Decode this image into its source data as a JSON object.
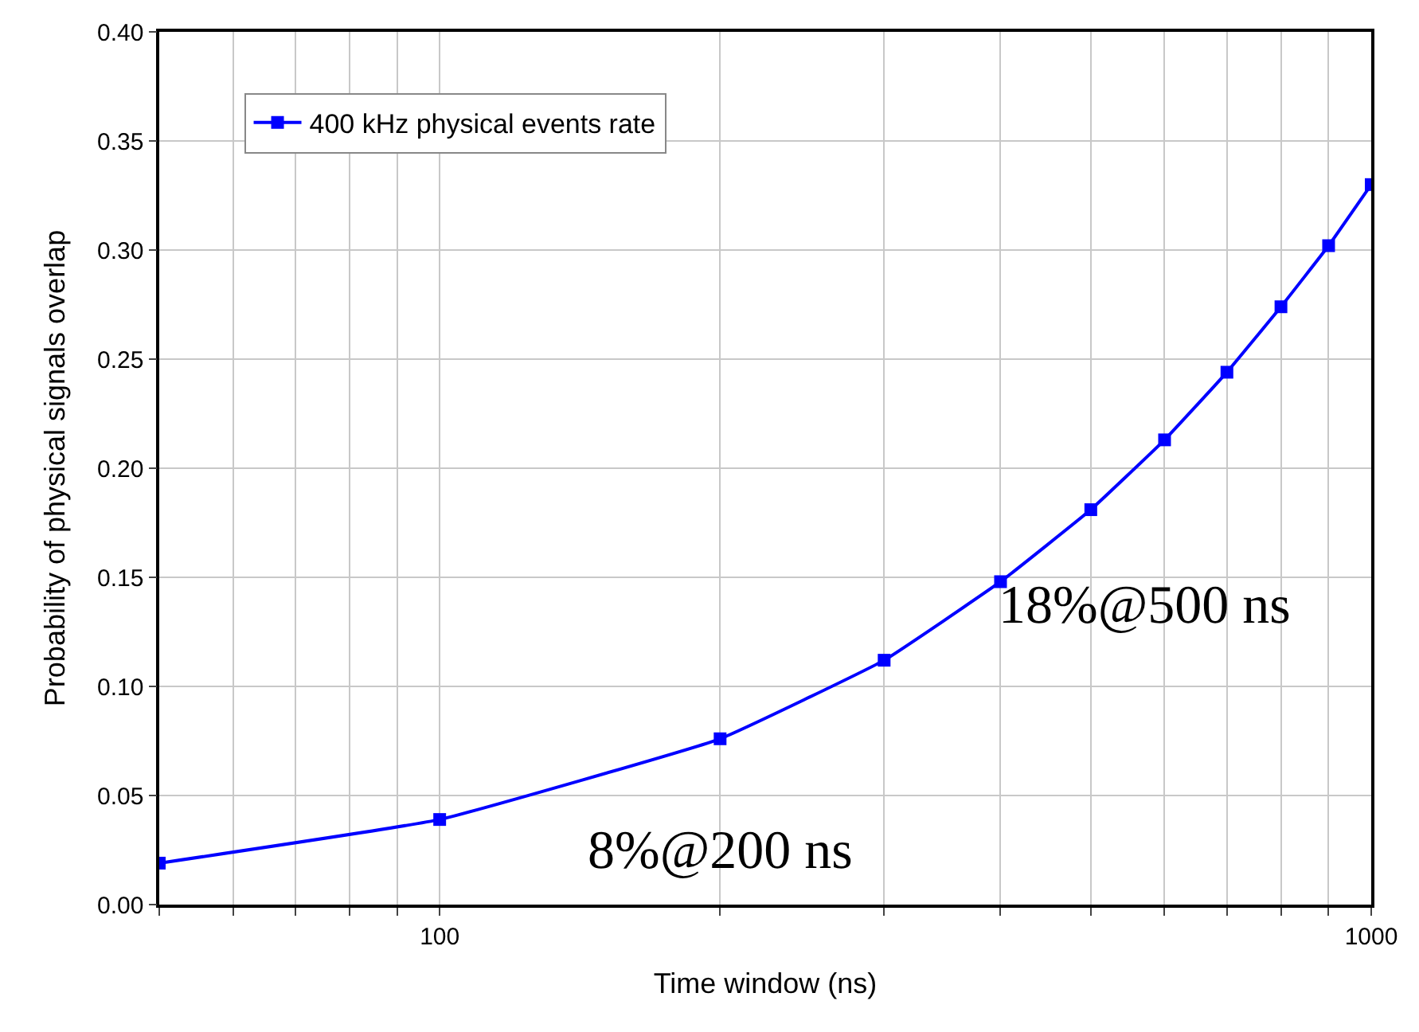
{
  "chart_data": {
    "type": "line",
    "xlabel": "Time window (ns)",
    "ylabel": "Probability of physical signals overlap",
    "log": "x",
    "x": [
      50,
      100,
      200,
      300,
      400,
      500,
      600,
      700,
      800,
      900,
      1000
    ],
    "series": [
      {
        "name": "400 kHz physical events rate",
        "color": "#0000ff",
        "values": [
          0.019,
          0.039,
          0.076,
          0.112,
          0.148,
          0.181,
          0.213,
          0.244,
          0.274,
          0.302,
          0.33
        ]
      }
    ],
    "xlim": [
      50,
      1000
    ],
    "xticks": [
      {
        "value": 50,
        "label": null
      },
      {
        "value": 60,
        "label": null
      },
      {
        "value": 70,
        "label": null
      },
      {
        "value": 80,
        "label": null
      },
      {
        "value": 90,
        "label": null
      },
      100,
      {
        "value": 200,
        "label": null
      },
      {
        "value": 300,
        "label": null
      },
      {
        "value": 400,
        "label": null
      },
      {
        "value": 500,
        "label": null
      },
      {
        "value": 600,
        "label": null
      },
      {
        "value": 700,
        "label": null
      },
      {
        "value": 800,
        "label": null
      },
      {
        "value": 900,
        "label": null
      },
      1000
    ],
    "ylim": [
      0,
      0.4
    ],
    "yticks": [
      {
        "value": 0,
        "label": "0.00"
      },
      {
        "value": 0.05,
        "label": "0.05"
      },
      {
        "value": 0.1,
        "label": "0.10"
      },
      {
        "value": 0.15,
        "label": "0.15"
      },
      {
        "value": 0.2,
        "label": "0.20"
      },
      {
        "value": 0.25,
        "label": "0.25"
      },
      {
        "value": 0.3,
        "label": "0.30"
      },
      {
        "value": 0.35,
        "label": "0.35"
      },
      {
        "value": 0.4,
        "label": "0.40"
      }
    ],
    "grid": true,
    "legend": "top left",
    "marker": "square",
    "line_style": "solid",
    "annotations": [
      {
        "text": "8%@200 ns",
        "x": 200,
        "y": 0.076
      },
      {
        "text": "18%@500 ns",
        "x": 500,
        "y": 0.181
      }
    ]
  }
}
